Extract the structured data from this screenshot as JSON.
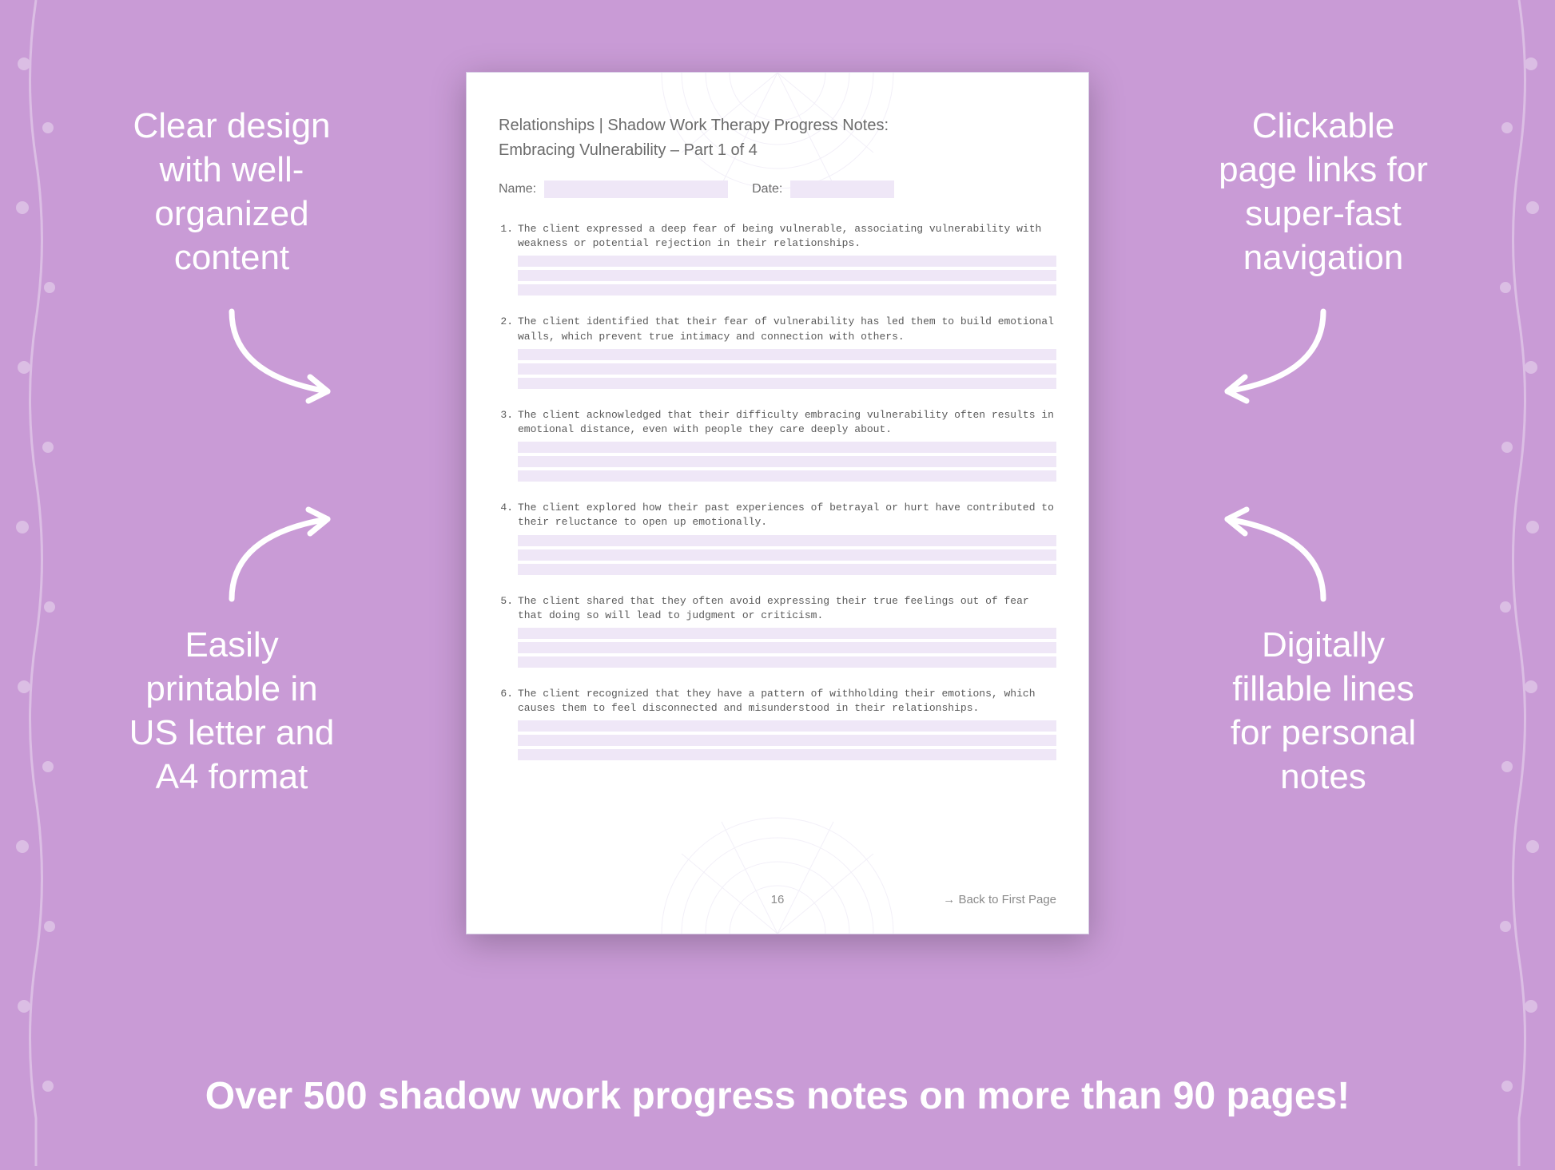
{
  "colors": {
    "background": "#c99bd6",
    "white": "#ffffff",
    "doc_shadow": "rgba(0,0,0,0.25)",
    "doc_border": "#d8cfe6",
    "text_gray": "#6b6b6b",
    "field_fill": "#efe7f7",
    "vine": "#ffffff",
    "arrow_stroke": "#ffffff"
  },
  "callouts": {
    "tl": "Clear design\nwith well-\norganized\ncontent",
    "tr": "Clickable\npage links for\nsuper-fast\nnavigation",
    "bl": "Easily\nprintable in\nUS letter and\nA4 format",
    "br": "Digitally\nfillable lines\nfor personal\nnotes"
  },
  "document": {
    "title_line1": "Relationships | Shadow Work Therapy Progress Notes:",
    "title_line2": "Embracing Vulnerability  – Part 1 of 4",
    "name_label": "Name:",
    "date_label": "Date:",
    "items": [
      {
        "n": "1.",
        "text": "The client expressed a deep fear of being vulnerable, associating vulnerability with weakness or potential rejection in their relationships."
      },
      {
        "n": "2.",
        "text": "The client identified that their fear of vulnerability has led them to build emotional walls, which prevent true intimacy and connection with others."
      },
      {
        "n": "3.",
        "text": "The client acknowledged that their difficulty embracing vulnerability often results in emotional distance, even with people they care deeply about."
      },
      {
        "n": "4.",
        "text": "The client explored how their past experiences of betrayal or hurt have contributed to their reluctance to open up emotionally."
      },
      {
        "n": "5.",
        "text": "The client shared that they often avoid expressing their true feelings out of fear that doing so will lead to judgment or criticism."
      },
      {
        "n": "6.",
        "text": "The client recognized that they have a pattern of withholding their emotions, which causes them to feel disconnected and misunderstood in their relationships."
      }
    ],
    "lines_per_item": 3,
    "page_number": "16",
    "back_link": "→ Back to First Page"
  },
  "bottom_caption": "Over 500 shadow work progress notes on more than 90 pages!",
  "typography": {
    "callout_fontsize": 44,
    "callout_weight": 300,
    "bottom_fontsize": 48,
    "bottom_weight": 600,
    "doc_title_fontsize": 20,
    "item_fontsize": 13,
    "item_font": "Courier New"
  }
}
